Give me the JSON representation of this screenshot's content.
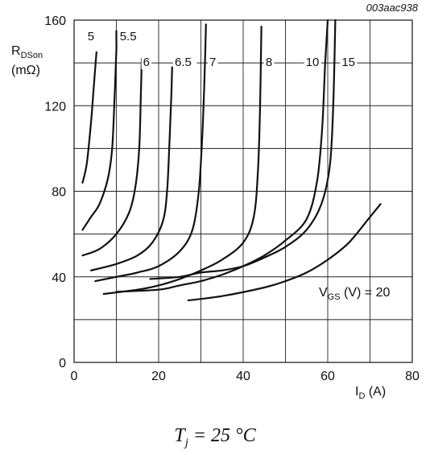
{
  "chart_data": {
    "type": "line",
    "figure_id": "003aac938",
    "ylabel": {
      "main": "R",
      "sub": "DSon",
      "unit": "(mΩ)"
    },
    "xlabel": {
      "main": "I",
      "sub": "D",
      "unit": " (A)"
    },
    "xlim": [
      0,
      80
    ],
    "ylim": [
      0,
      160
    ],
    "x_ticks": [
      0,
      20,
      40,
      60,
      80
    ],
    "y_ticks": [
      0,
      40,
      80,
      120,
      160
    ],
    "grid": true,
    "legend_label": {
      "main": "V",
      "sub": "GS",
      "rest": " (V) = 20"
    },
    "condition": "T_j = 25 °C",
    "condition_parts": {
      "t": "T",
      "sub": "j",
      "rest": " = 25 °C"
    },
    "series": [
      {
        "name": "5",
        "label_at": [
          3.2,
          150.5
        ],
        "points": [
          [
            2,
            84
          ],
          [
            3,
            93
          ],
          [
            4,
            112
          ],
          [
            4.7,
            130
          ],
          [
            5.3,
            145
          ]
        ]
      },
      {
        "name": "5.5",
        "label_at": [
          10.8,
          150.5
        ],
        "points": [
          [
            2,
            62
          ],
          [
            4,
            68
          ],
          [
            6,
            74
          ],
          [
            8,
            86
          ],
          [
            9,
            100
          ],
          [
            9.6,
            125
          ],
          [
            10,
            146
          ],
          [
            10,
            150
          ],
          [
            10,
            155
          ]
        ]
      },
      {
        "name": "6",
        "label_at": [
          16.3,
          138.5
        ],
        "points": [
          [
            2,
            50
          ],
          [
            6,
            53
          ],
          [
            10,
            60
          ],
          [
            13,
            70
          ],
          [
            14.5,
            82
          ],
          [
            15.4,
            100
          ],
          [
            15.8,
            125
          ],
          [
            16,
            142
          ]
        ]
      },
      {
        "name": "6.5",
        "label_at": [
          23.8,
          138.5
        ],
        "points": [
          [
            4,
            43
          ],
          [
            10,
            46
          ],
          [
            15,
            50
          ],
          [
            18.5,
            56
          ],
          [
            21,
            66
          ],
          [
            22,
            80
          ],
          [
            22.6,
            105
          ],
          [
            23,
            125
          ],
          [
            23.2,
            138
          ]
        ]
      },
      {
        "name": "7",
        "label_at": [
          32.0,
          138.5
        ],
        "points": [
          [
            5,
            38
          ],
          [
            10,
            40
          ],
          [
            15,
            42
          ],
          [
            20,
            45
          ],
          [
            25,
            52
          ],
          [
            28,
            62
          ],
          [
            29.5,
            80
          ],
          [
            30.3,
            105
          ],
          [
            30.8,
            130
          ],
          [
            31.2,
            158
          ]
        ]
      },
      {
        "name": "8",
        "label_at": [
          45.3,
          138.5
        ],
        "points": [
          [
            7,
            32
          ],
          [
            15,
            34
          ],
          [
            20,
            36
          ],
          [
            25,
            39
          ],
          [
            30,
            43
          ],
          [
            35,
            48
          ],
          [
            40,
            56
          ],
          [
            42.5,
            68
          ],
          [
            43.5,
            90
          ],
          [
            44,
            120
          ],
          [
            44.3,
            157
          ]
        ]
      },
      {
        "name": "10",
        "label_at": [
          54.8,
          138.5
        ],
        "points": [
          [
            10,
            33
          ],
          [
            20,
            34
          ],
          [
            25,
            36
          ],
          [
            30,
            38
          ],
          [
            35,
            41
          ],
          [
            40,
            45
          ],
          [
            45,
            50
          ],
          [
            50,
            57
          ],
          [
            55,
            67
          ],
          [
            57.5,
            85
          ],
          [
            58.7,
            110
          ],
          [
            59.4,
            140
          ],
          [
            60,
            160
          ]
        ]
      },
      {
        "name": "15",
        "label_at": [
          63.3,
          138.5
        ],
        "points": [
          [
            18,
            39
          ],
          [
            25,
            40
          ],
          [
            30,
            42
          ],
          [
            35,
            43
          ],
          [
            40,
            45
          ],
          [
            45,
            49
          ],
          [
            50,
            54
          ],
          [
            55,
            62
          ],
          [
            58.5,
            74
          ],
          [
            60.5,
            92
          ],
          [
            61.3,
            120
          ],
          [
            61.8,
            160
          ]
        ]
      },
      {
        "name": "20",
        "points": [
          [
            27,
            29
          ],
          [
            35,
            31
          ],
          [
            45,
            35
          ],
          [
            50,
            38
          ],
          [
            55,
            42
          ],
          [
            60,
            48
          ],
          [
            65,
            56
          ],
          [
            70,
            68
          ],
          [
            72.5,
            74
          ]
        ]
      }
    ]
  }
}
